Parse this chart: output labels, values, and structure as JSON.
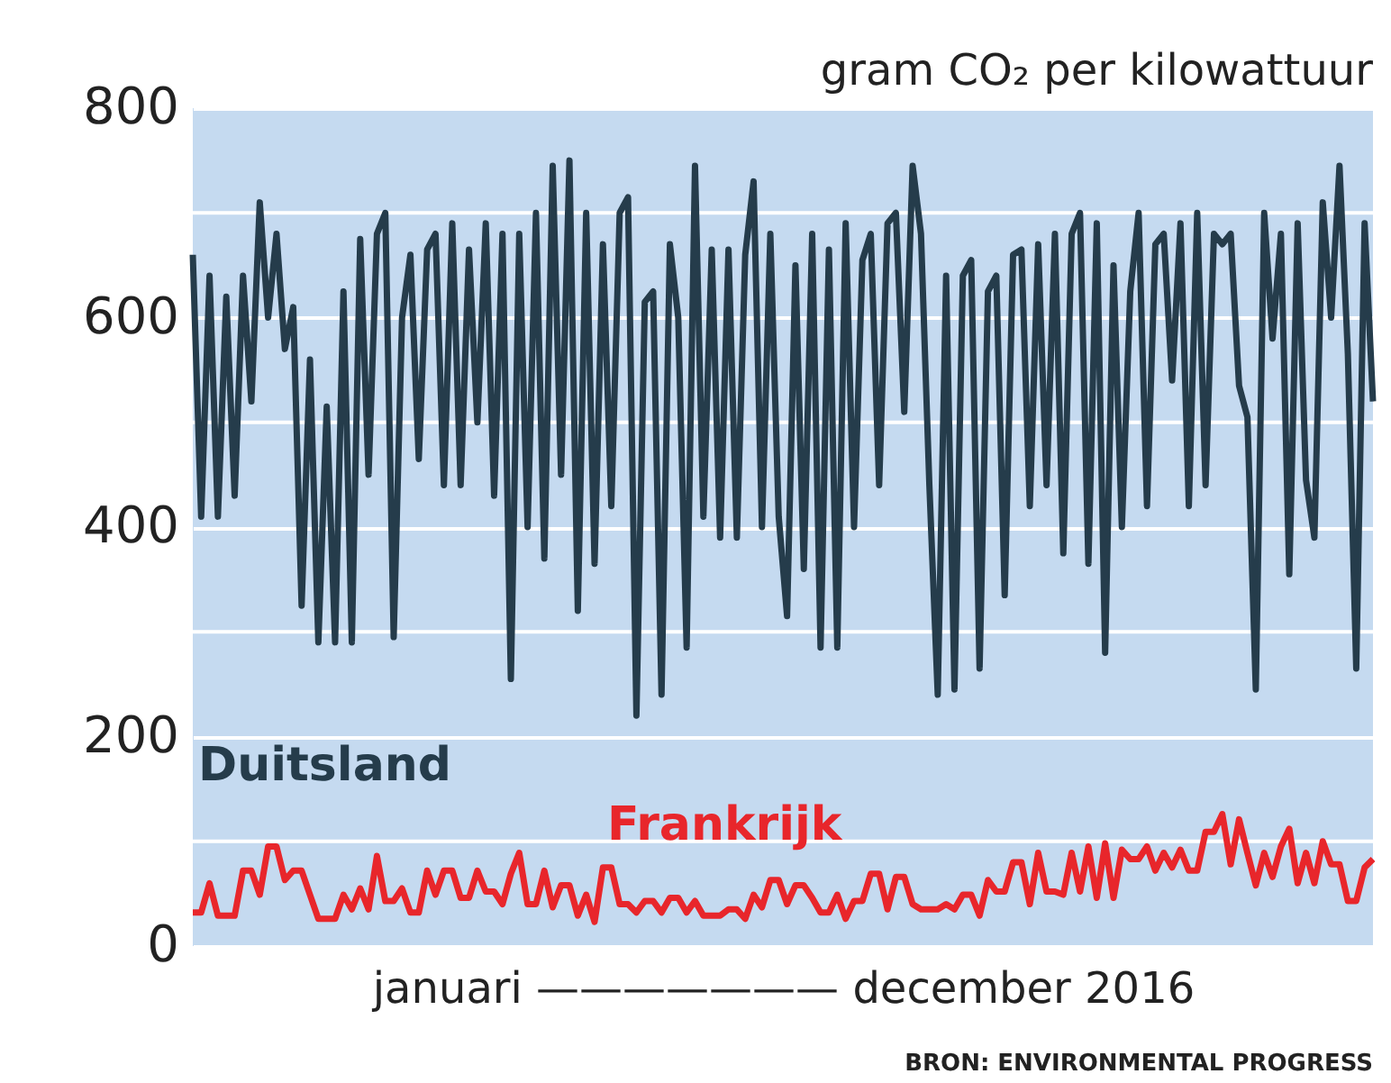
{
  "chart_data": {
    "type": "line",
    "ylabel": "gram CO₂ per kilowattuur",
    "xlabel": "januari ——————— december 2016",
    "annotations": [
      "BRON: ENVIRONMENTAL PROGRESS"
    ],
    "categories": [
      null,
      null,
      null,
      null,
      null,
      null,
      null,
      null,
      null,
      null,
      null,
      null,
      null,
      null,
      null,
      null,
      null,
      null,
      null,
      null,
      null,
      null,
      null,
      null,
      null,
      null,
      null,
      null,
      null,
      null,
      null,
      null,
      null,
      null,
      null,
      null,
      null,
      null,
      null,
      null,
      null,
      null,
      null,
      null,
      null,
      null,
      null,
      null,
      null,
      null,
      null,
      null,
      null,
      null,
      null,
      null,
      null,
      null,
      null,
      null,
      null,
      null,
      null,
      null,
      null,
      null,
      null,
      null,
      null,
      null,
      null,
      null,
      null,
      null,
      null,
      null,
      null,
      null,
      null,
      null,
      null,
      null,
      null,
      null,
      null,
      null,
      null,
      null,
      null,
      null,
      null,
      null,
      null,
      null,
      null,
      null,
      null,
      null,
      null,
      null,
      null,
      null,
      null,
      null,
      null,
      null,
      null,
      null,
      null,
      null,
      null,
      null,
      null,
      null,
      null,
      null,
      null,
      null,
      null,
      null,
      null,
      null,
      null,
      null,
      null,
      null,
      null,
      null,
      null,
      null,
      null,
      null,
      null,
      null,
      null,
      null,
      null,
      null,
      null,
      null,
      null,
      null
    ],
    "ylim": [
      0,
      800
    ],
    "yticks": [
      0,
      200,
      400,
      600,
      800
    ],
    "grid": "y",
    "tick_labels": "y",
    "legend": false,
    "series": [
      {
        "name": "Duitsland",
        "color": "#253c4b",
        "values": [
          660,
          410,
          640,
          410,
          620,
          430,
          640,
          520,
          710,
          600,
          680,
          570,
          610,
          325,
          560,
          290,
          515,
          290,
          625,
          290,
          675,
          450,
          680,
          700,
          295,
          600,
          660,
          465,
          665,
          680,
          440,
          690,
          440,
          665,
          500,
          690,
          430,
          680,
          255,
          680,
          400,
          700,
          370,
          745,
          450,
          750,
          320,
          700,
          365,
          670,
          420,
          700,
          715,
          220,
          615,
          625,
          240,
          670,
          600,
          285,
          745,
          410,
          665,
          390,
          665,
          390,
          660,
          730,
          400,
          680,
          410,
          315,
          650,
          360,
          680,
          285,
          665,
          285,
          690,
          400,
          655,
          680,
          440,
          690,
          700,
          510,
          745,
          680,
          440,
          240,
          640,
          245,
          640,
          655,
          265,
          625,
          640,
          335,
          660,
          665,
          420,
          670,
          440,
          680,
          375,
          680,
          700,
          365,
          690,
          280,
          650,
          400,
          625,
          700,
          420,
          670,
          680,
          540,
          690,
          420,
          700,
          440,
          680,
          670,
          680,
          535,
          505,
          245,
          700,
          580,
          680,
          355,
          690,
          445,
          390,
          710,
          600,
          745,
          565,
          265,
          690,
          520
        ]
      },
      {
        "name": "Frankrijk",
        "color": "#e8262b",
        "values": [
          32,
          32,
          60,
          29,
          29,
          29,
          72,
          72,
          49,
          95,
          95,
          63,
          72,
          72,
          49,
          26,
          26,
          26,
          49,
          35,
          55,
          35,
          86,
          43,
          43,
          55,
          32,
          32,
          72,
          49,
          72,
          72,
          46,
          46,
          72,
          52,
          52,
          40,
          69,
          89,
          40,
          40,
          72,
          37,
          58,
          58,
          29,
          49,
          23,
          75,
          75,
          40,
          40,
          32,
          43,
          43,
          32,
          46,
          46,
          32,
          43,
          29,
          29,
          29,
          35,
          35,
          26,
          49,
          37,
          63,
          63,
          40,
          58,
          58,
          46,
          32,
          32,
          49,
          26,
          43,
          43,
          69,
          69,
          35,
          66,
          66,
          40,
          35,
          35,
          35,
          40,
          35,
          49,
          49,
          29,
          63,
          52,
          52,
          80,
          80,
          40,
          89,
          52,
          52,
          49,
          89,
          52,
          95,
          46,
          98,
          46,
          92,
          83,
          83,
          95,
          72,
          89,
          75,
          92,
          72,
          72,
          109,
          109,
          126,
          78,
          121,
          89,
          58,
          89,
          66,
          95,
          112,
          60,
          89,
          60,
          100,
          78,
          78,
          43,
          43,
          75,
          83
        ]
      }
    ]
  }
}
